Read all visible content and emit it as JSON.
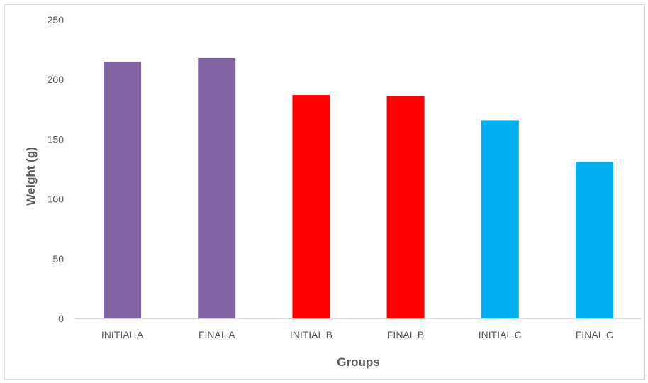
{
  "chart_data": {
    "type": "bar",
    "title": "",
    "xlabel": "Groups",
    "ylabel": "Weight (g)",
    "categories": [
      "INITIAL A",
      "FINAL A",
      "INITIAL B",
      "FINAL B",
      "INITIAL C",
      "FINAL C"
    ],
    "values": [
      215,
      218,
      187,
      186,
      166,
      131
    ],
    "colors": [
      "#8064a2",
      "#8064a2",
      "#ff0000",
      "#ff0000",
      "#00b0f0",
      "#00b0f0"
    ],
    "ylim": [
      0,
      250
    ],
    "yticks": [
      "0",
      "50",
      "100",
      "150",
      "200",
      "250"
    ],
    "grid": false,
    "legend": "none"
  }
}
